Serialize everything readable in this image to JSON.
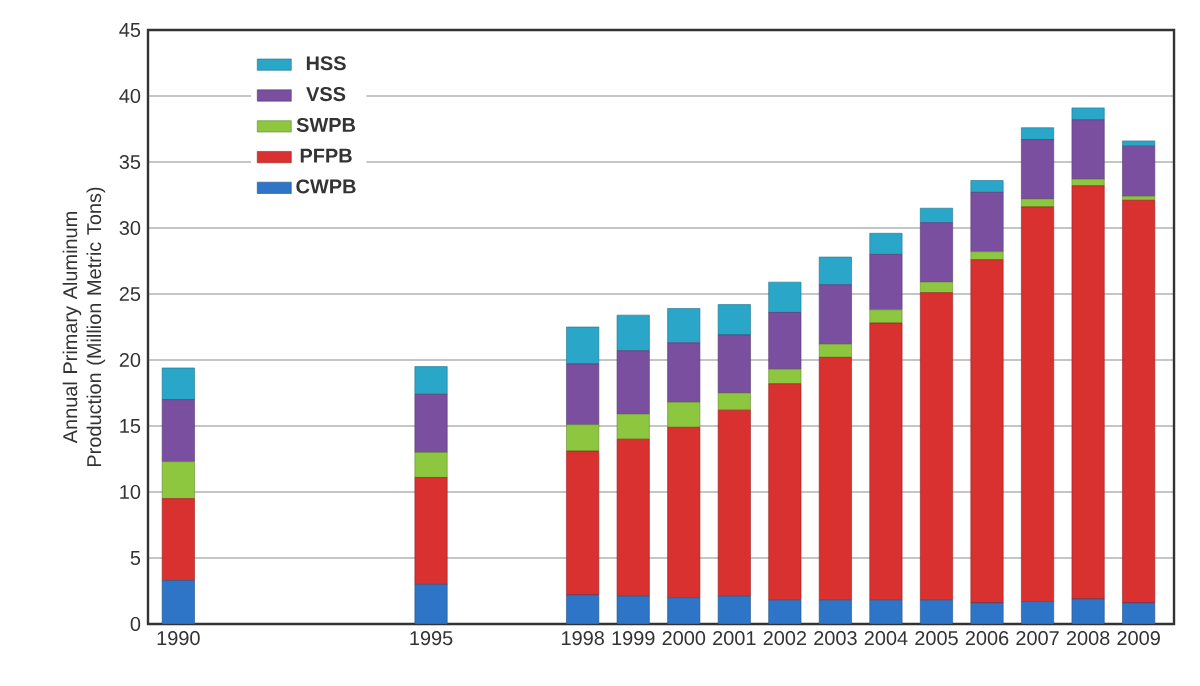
{
  "chart_data": {
    "type": "bar",
    "stacked": true,
    "ylabel": "Annual Primary Aluminum Production (Million Metric Tons)",
    "x": [
      1990,
      1995,
      1998,
      1999,
      2000,
      2001,
      2002,
      2003,
      2004,
      2005,
      2006,
      2007,
      2008,
      2009
    ],
    "xlim": [
      1989.4,
      2009.7
    ],
    "xticks": [
      1990,
      1995,
      1998,
      1999,
      2000,
      2001,
      2002,
      2003,
      2004,
      2005,
      2006,
      2007,
      2008,
      2009
    ],
    "ylim": [
      0,
      45
    ],
    "yticks": [
      0,
      5,
      10,
      15,
      20,
      25,
      30,
      35,
      40,
      45
    ],
    "grid": "y",
    "legend": "top left",
    "series": [
      {
        "name": "CWPB",
        "color": "#2e75c8",
        "values": [
          3.3,
          3.0,
          2.2,
          2.1,
          2.0,
          2.1,
          1.8,
          1.8,
          1.8,
          1.8,
          1.6,
          1.7,
          1.9,
          1.6
        ]
      },
      {
        "name": "PFPB",
        "color": "#d93030",
        "values": [
          6.2,
          8.1,
          10.9,
          11.9,
          12.9,
          14.1,
          16.4,
          18.4,
          21.0,
          23.3,
          26.0,
          29.9,
          31.3,
          30.5
        ]
      },
      {
        "name": "SWPB",
        "color": "#8dc63f",
        "values": [
          2.8,
          1.9,
          2.0,
          1.9,
          1.9,
          1.3,
          1.1,
          1.0,
          1.0,
          0.8,
          0.6,
          0.6,
          0.5,
          0.3
        ]
      },
      {
        "name": "VSS",
        "color": "#7b4fa0",
        "values": [
          4.7,
          4.4,
          4.6,
          4.8,
          4.5,
          4.4,
          4.3,
          4.5,
          4.2,
          4.5,
          4.5,
          4.5,
          4.5,
          3.8
        ]
      },
      {
        "name": "HSS",
        "color": "#2aa6c8",
        "values": [
          2.4,
          2.1,
          2.8,
          2.7,
          2.6,
          2.3,
          2.3,
          2.1,
          1.6,
          1.1,
          0.9,
          0.9,
          0.9,
          0.4
        ]
      }
    ]
  }
}
